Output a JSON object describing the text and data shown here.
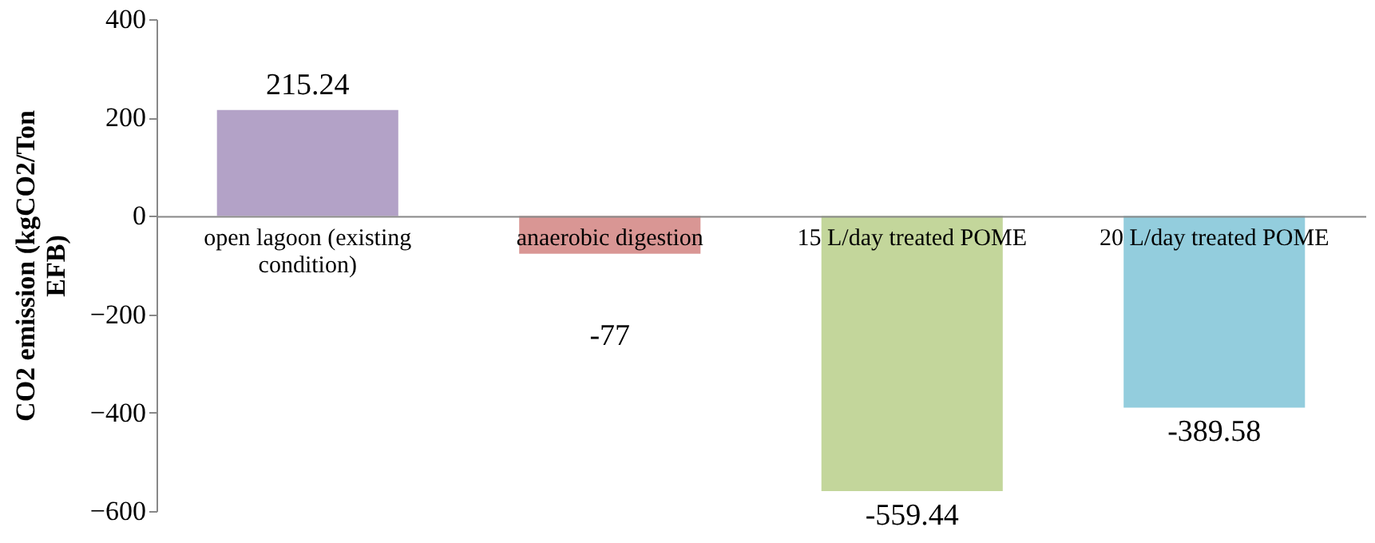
{
  "chart_data": {
    "type": "bar",
    "ylabel": "CO2 emission (kgCO2/Ton EFB)",
    "categories": [
      "open lagoon (existing condition)",
      "anaerobic digestion",
      "15 L/day treated POME",
      "20 L/day treated POME"
    ],
    "values": [
      215.24,
      -77,
      -559.44,
      -389.58
    ],
    "colors": [
      "#b3a2c7",
      "#d99694",
      "#c3d69b",
      "#93cddd"
    ],
    "ylim": [
      -600,
      400
    ],
    "yticks": [
      -600,
      -400,
      -200,
      0,
      200,
      400
    ],
    "data_labels": true,
    "grid": false
  }
}
